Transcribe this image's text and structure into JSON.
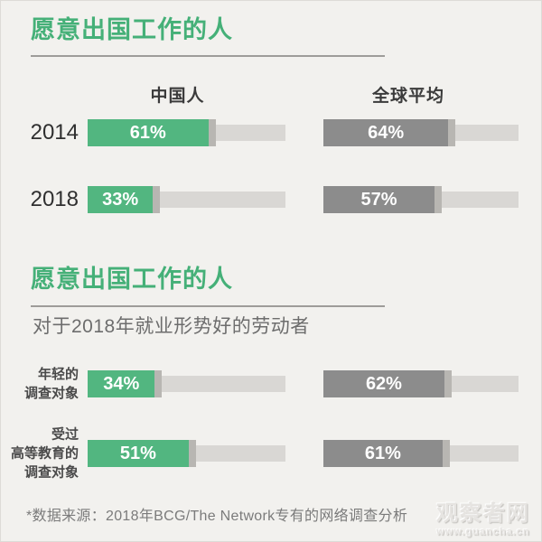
{
  "page": {
    "footer": "*数据来源：2018年BCG/The Network专有的网络调查分析",
    "watermark": {
      "name": "观察者网",
      "url": "www.guancha.cn"
    }
  },
  "colors": {
    "background": "#f2f1ee",
    "title_green": "#45b078",
    "bar_green": "#52b680",
    "bar_gray": "#8c8c8c",
    "track_gray": "#d9d7d4",
    "cap_gray": "#b8b6b2"
  },
  "chart_data": [
    {
      "type": "bar",
      "title": "愿意出国工作的人",
      "columns": [
        "中国人",
        "全球平均"
      ],
      "unit": "%",
      "xlim": [
        0,
        100
      ],
      "rows": [
        {
          "label": "2014",
          "china": 61,
          "global": 64
        },
        {
          "label": "2018",
          "china": 33,
          "global": 57
        }
      ]
    },
    {
      "type": "bar",
      "title": "愿意出国工作的人",
      "subtitle": "对于2018年就业形势好的劳动者",
      "columns": [
        "中国人",
        "全球平均"
      ],
      "unit": "%",
      "xlim": [
        0,
        100
      ],
      "rows": [
        {
          "label": "年轻的\n调查对象",
          "china": 34,
          "global": 62
        },
        {
          "label": "受过\n高等教育的\n调查对象",
          "china": 51,
          "global": 61
        }
      ]
    }
  ]
}
